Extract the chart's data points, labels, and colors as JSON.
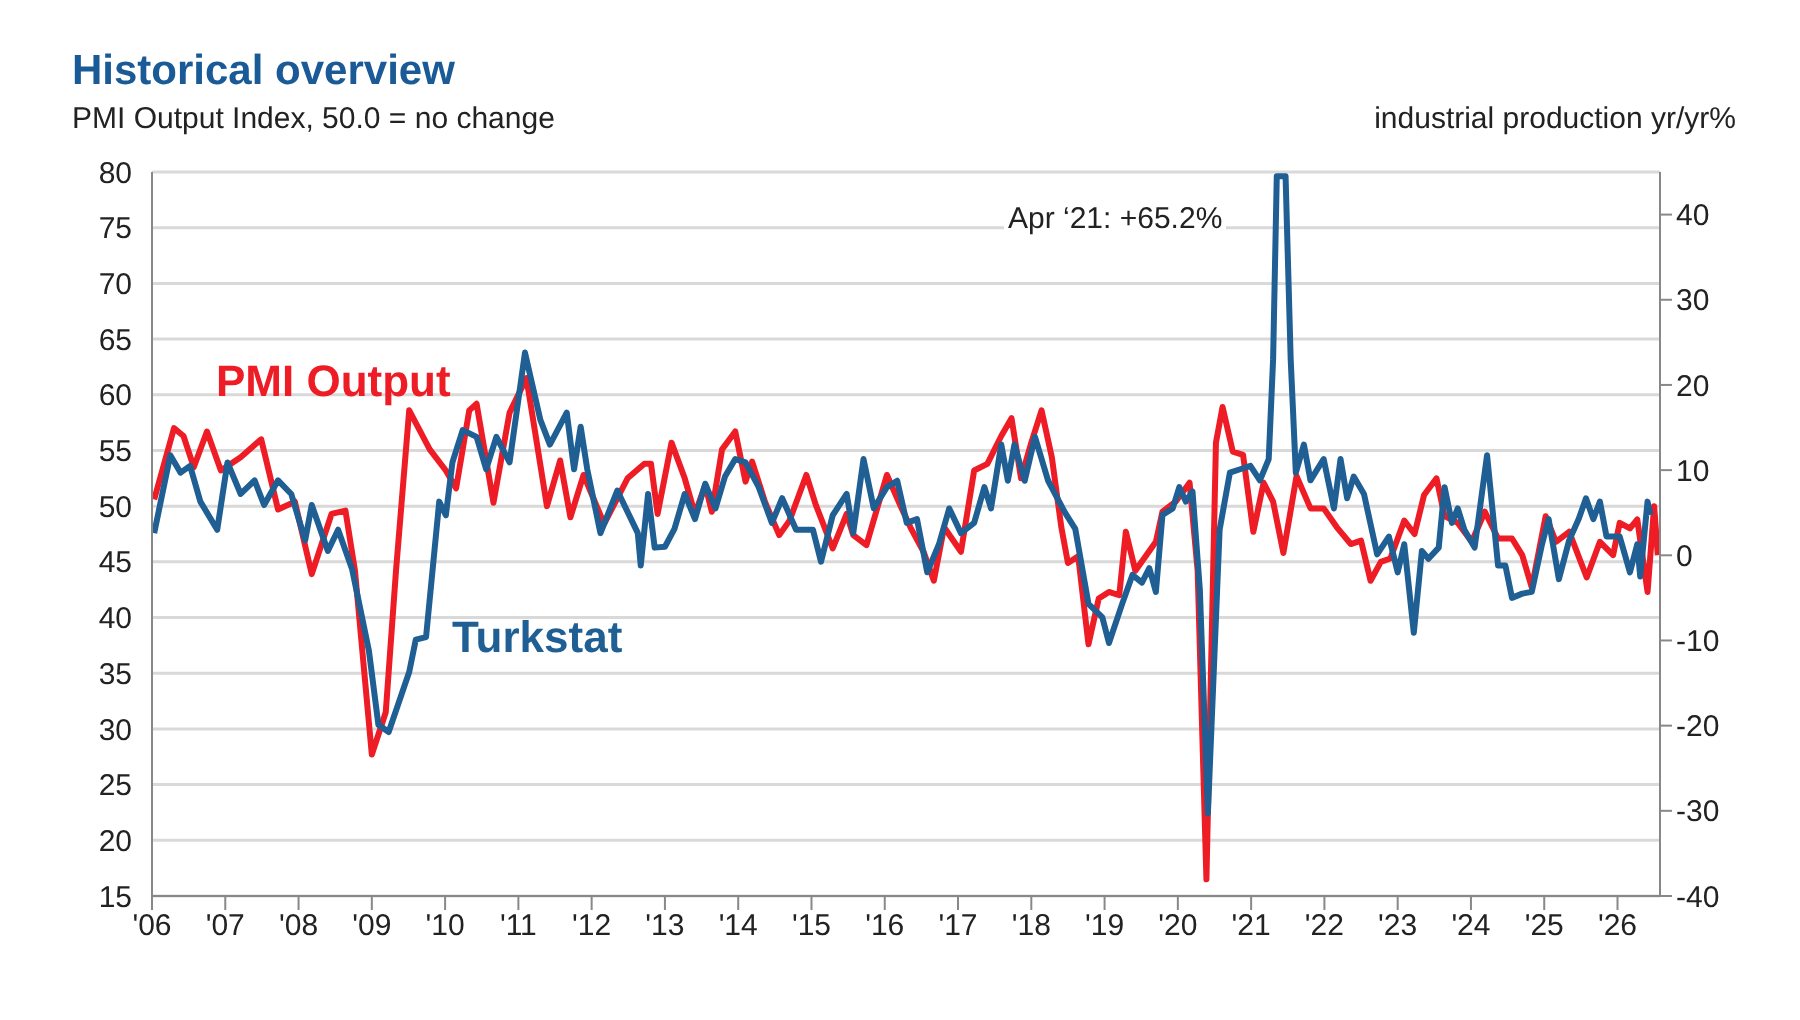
{
  "chart_data": {
    "type": "line",
    "title": "Historical overview",
    "ylabel": "PMI Output Index, 50.0 = no change",
    "y2label": "industrial production yr/yr%",
    "annotations": [
      "Apr ‘21: +65.2%"
    ],
    "xlim": [
      2006,
      2026.58
    ],
    "xticks": [
      {
        "value": 2006,
        "label": "'06"
      },
      {
        "value": 2007,
        "label": "'07"
      },
      {
        "value": 2008,
        "label": "'08"
      },
      {
        "value": 2009,
        "label": "'09"
      },
      {
        "value": 2010,
        "label": "'10"
      },
      {
        "value": 2011,
        "label": "'11"
      },
      {
        "value": 2012,
        "label": "'12"
      },
      {
        "value": 2013,
        "label": "'13"
      },
      {
        "value": 2014,
        "label": "'14"
      },
      {
        "value": 2015,
        "label": "'15"
      },
      {
        "value": 2016,
        "label": "'16"
      },
      {
        "value": 2017,
        "label": "'17"
      },
      {
        "value": 2018,
        "label": "'18"
      },
      {
        "value": 2019,
        "label": "'19"
      },
      {
        "value": 2020,
        "label": "'20"
      },
      {
        "value": 2021,
        "label": "'21"
      },
      {
        "value": 2022,
        "label": "'22"
      },
      {
        "value": 2023,
        "label": "'23"
      },
      {
        "value": 2024,
        "label": "'24"
      },
      {
        "value": 2025,
        "label": "'25"
      },
      {
        "value": 2026,
        "label": "'26"
      }
    ],
    "ylim": [
      15,
      80
    ],
    "yticks": [
      15,
      20,
      25,
      30,
      35,
      40,
      45,
      50,
      55,
      60,
      65,
      70,
      75,
      80
    ],
    "y2lim": [
      -40,
      45
    ],
    "y2ticks": [
      -40,
      -30,
      -20,
      -10,
      0,
      10,
      20,
      30,
      40
    ],
    "grid": "y",
    "marker": "none",
    "line_style": "solid",
    "series": [
      {
        "name": "PMI Output",
        "color": "#ee1c25",
        "x": [
          2006.03,
          2006.3,
          2006.43,
          2006.57,
          2006.75,
          2006.94,
          2007.21,
          2007.49,
          2007.72,
          2007.95,
          2008.18,
          2008.45,
          2008.64,
          2008.77,
          2009.0,
          2009.19,
          2009.33,
          2009.51,
          2009.79,
          2010.01,
          2010.15,
          2010.33,
          2010.43,
          2010.66,
          2010.88,
          2011.11,
          2011.39,
          2011.57,
          2011.71,
          2011.89,
          2012.17,
          2012.49,
          2012.72,
          2012.81,
          2012.9,
          2013.09,
          2013.27,
          2013.41,
          2013.55,
          2013.64,
          2013.78,
          2013.96,
          2014.1,
          2014.19,
          2014.37,
          2014.56,
          2014.7,
          2014.93,
          2015.06,
          2015.29,
          2015.48,
          2015.57,
          2015.75,
          2016.03,
          2016.21,
          2016.35,
          2016.53,
          2016.67,
          2016.81,
          2017.04,
          2017.22,
          2017.4,
          2017.59,
          2017.73,
          2017.86,
          2018.0,
          2018.14,
          2018.28,
          2018.41,
          2018.5,
          2018.64,
          2018.78,
          2018.92,
          2019.06,
          2019.2,
          2019.29,
          2019.42,
          2019.7,
          2019.79,
          2019.97,
          2020.16,
          2020.27,
          2020.39,
          2020.52,
          2020.61,
          2020.75,
          2020.89,
          2021.03,
          2021.17,
          2021.3,
          2021.44,
          2021.62,
          2021.81,
          2021.99,
          2022.17,
          2022.36,
          2022.5,
          2022.63,
          2022.77,
          2022.9,
          2023.09,
          2023.23,
          2023.36,
          2023.53,
          2023.64,
          2023.82,
          2024.01,
          2024.19,
          2024.37,
          2024.56,
          2024.7,
          2024.83,
          2025.02,
          2025.16,
          2025.34,
          2025.58,
          2025.76,
          2025.94,
          2026.03,
          2026.17,
          2026.27,
          2026.41,
          2026.5,
          2026.55
        ],
        "values": [
          50.6,
          57.0,
          56.3,
          53.5,
          56.7,
          53.2,
          54.4,
          56.0,
          49.7,
          50.4,
          43.9,
          49.3,
          49.6,
          44.2,
          27.7,
          31.5,
          44.2,
          58.6,
          55.1,
          53.2,
          51.6,
          58.6,
          59.2,
          50.3,
          58.4,
          61.5,
          50.0,
          54.1,
          49.0,
          52.8,
          48.4,
          52.5,
          53.8,
          53.8,
          49.3,
          55.7,
          52.5,
          49.3,
          51.9,
          49.5,
          55.1,
          56.7,
          52.2,
          54.0,
          50.3,
          47.4,
          48.7,
          52.8,
          50.1,
          46.2,
          49.3,
          47.4,
          46.5,
          52.8,
          50.1,
          48.1,
          45.9,
          43.3,
          48.1,
          45.9,
          53.2,
          53.8,
          56.3,
          57.9,
          52.5,
          55.7,
          58.6,
          54.4,
          48.1,
          44.9,
          45.5,
          37.6,
          41.7,
          42.3,
          42.0,
          47.7,
          44.2,
          46.8,
          49.5,
          50.4,
          52.1,
          44.2,
          16.5,
          55.7,
          58.9,
          54.9,
          54.6,
          47.7,
          52.1,
          50.4,
          45.8,
          52.7,
          49.8,
          49.8,
          48.1,
          46.6,
          46.9,
          43.3,
          45.0,
          45.3,
          48.7,
          47.5,
          51.0,
          52.5,
          49.1,
          48.5,
          46.8,
          49.5,
          47.1,
          47.1,
          45.6,
          42.7,
          49.1,
          46.8,
          47.7,
          43.6,
          46.8,
          45.6,
          48.5,
          48.0,
          48.8,
          42.3,
          50.0,
          45.6
        ]
      },
      {
        "name": "Turkstat",
        "color": "#1f5f94",
        "axis": "y2",
        "x": [
          2006.03,
          2006.25,
          2006.39,
          2006.52,
          2006.66,
          2006.89,
          2007.03,
          2007.21,
          2007.4,
          2007.53,
          2007.72,
          2007.9,
          2008.09,
          2008.18,
          2008.4,
          2008.54,
          2008.73,
          2008.96,
          2009.09,
          2009.23,
          2009.51,
          2009.6,
          2009.74,
          2009.92,
          2010.01,
          2010.1,
          2010.24,
          2010.43,
          2010.56,
          2010.7,
          2010.88,
          2011.09,
          2011.3,
          2011.43,
          2011.66,
          2011.76,
          2011.85,
          2011.94,
          2012.12,
          2012.35,
          2012.63,
          2012.67,
          2012.77,
          2012.86,
          2013.0,
          2013.13,
          2013.27,
          2013.41,
          2013.55,
          2013.69,
          2013.82,
          2013.96,
          2014.1,
          2014.28,
          2014.46,
          2014.6,
          2014.79,
          2015.02,
          2015.13,
          2015.29,
          2015.48,
          2015.57,
          2015.71,
          2015.85,
          2016.03,
          2016.17,
          2016.3,
          2016.44,
          2016.58,
          2016.74,
          2016.88,
          2017.04,
          2017.22,
          2017.36,
          2017.45,
          2017.59,
          2017.68,
          2017.77,
          2017.91,
          2018.05,
          2018.23,
          2018.46,
          2018.6,
          2018.78,
          2018.97,
          2019.06,
          2019.24,
          2019.38,
          2019.51,
          2019.61,
          2019.7,
          2019.79,
          2019.93,
          2020.02,
          2020.11,
          2020.2,
          2020.3,
          2020.41,
          2020.57,
          2020.71,
          2020.85,
          2020.99,
          2021.12,
          2021.24,
          2021.3,
          2021.35,
          2021.47,
          2021.54,
          2021.61,
          2021.72,
          2021.81,
          2021.99,
          2022.13,
          2022.22,
          2022.31,
          2022.4,
          2022.54,
          2022.72,
          2022.88,
          2023.0,
          2023.09,
          2023.22,
          2023.33,
          2023.42,
          2023.56,
          2023.64,
          2023.74,
          2023.82,
          2023.91,
          2024.05,
          2024.22,
          2024.37,
          2024.47,
          2024.56,
          2024.7,
          2024.83,
          2024.97,
          2025.06,
          2025.2,
          2025.34,
          2025.47,
          2025.57,
          2025.67,
          2025.76,
          2025.85,
          2026.03,
          2026.17,
          2026.27,
          2026.31,
          2026.41,
          2026.45
        ],
        "values": [
          2.6,
          11.75,
          9.7,
          10.5,
          6.3,
          3.0,
          10.9,
          7.2,
          8.8,
          5.9,
          8.8,
          7.2,
          1.75,
          5.9,
          0.5,
          3.0,
          -1.6,
          -11.2,
          -19.9,
          -20.75,
          -13.7,
          -9.9,
          -9.6,
          6.3,
          4.7,
          10.9,
          14.7,
          13.9,
          10.1,
          13.9,
          10.9,
          23.8,
          15.9,
          13.0,
          16.75,
          10.1,
          15.1,
          10.1,
          2.6,
          7.6,
          2.6,
          -1.2,
          7.2,
          0.9,
          1.0,
          3.1,
          7.2,
          4.25,
          8.4,
          5.5,
          9.25,
          11.3,
          10.9,
          8.0,
          3.8,
          6.7,
          3.0,
          3.0,
          -0.75,
          4.7,
          7.2,
          2.6,
          11.3,
          5.5,
          8.0,
          8.75,
          3.8,
          4.25,
          -2.0,
          1.3,
          5.5,
          2.6,
          3.8,
          8.0,
          5.5,
          13.0,
          8.75,
          13.0,
          8.75,
          13.9,
          8.75,
          5.0,
          3.1,
          -5.7,
          -7.3,
          -10.3,
          -5.7,
          -2.3,
          -3.2,
          -1.5,
          -4.3,
          4.75,
          5.5,
          8.0,
          6.3,
          7.5,
          -4.0,
          -30.3,
          3.0,
          9.7,
          10.1,
          10.5,
          8.8,
          11.3,
          23.0,
          44.5,
          44.5,
          23.0,
          9.7,
          13.0,
          8.8,
          11.3,
          5.5,
          11.3,
          6.7,
          9.25,
          7.2,
          0.1,
          2.2,
          -2.0,
          1.3,
          -9.1,
          0.5,
          -0.4,
          0.9,
          8.0,
          3.8,
          5.5,
          3.0,
          0.9,
          11.75,
          -1.2,
          -1.2,
          -5.0,
          -4.5,
          -4.3,
          1.3,
          4.25,
          -2.8,
          1.75,
          4.25,
          6.7,
          4.25,
          6.3,
          2.2,
          2.2,
          -2.0,
          1.3,
          -2.5,
          6.3,
          4.75
        ]
      }
    ]
  }
}
